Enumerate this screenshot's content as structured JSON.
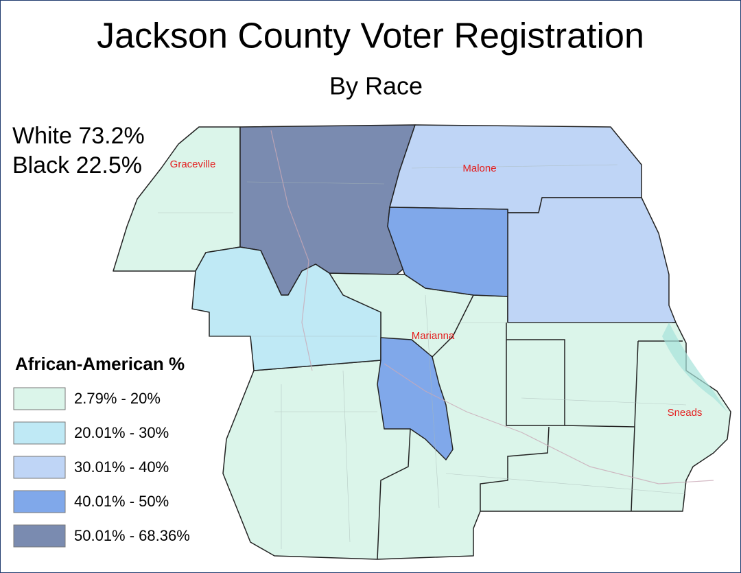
{
  "header": {
    "title": "Jackson County Voter Registration",
    "subtitle": "By Race"
  },
  "stats": [
    "White 73.2%",
    "Black 22.5%"
  ],
  "legend": {
    "title": "African-American %",
    "items": [
      {
        "label": "2.79% - 20%",
        "color": "#dbf5ea"
      },
      {
        "label": "20.01% - 30%",
        "color": "#bfe9f5"
      },
      {
        "label": "30.01% - 40%",
        "color": "#bfd5f6"
      },
      {
        "label": "40.01% - 50%",
        "color": "#80a8ea"
      },
      {
        "label": "50.01% - 68.36%",
        "color": "#7a8bb0"
      }
    ]
  },
  "cities": [
    "Graceville",
    "Malone",
    "Marianna",
    "Sneads"
  ]
}
